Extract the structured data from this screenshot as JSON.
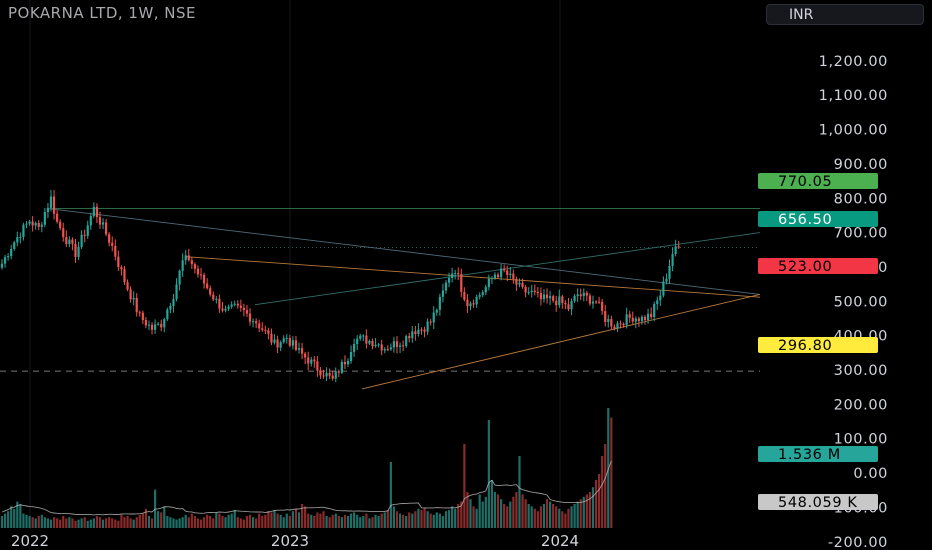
{
  "header": {
    "title": "POKARNA LTD, 1W, NSE",
    "currency": "INR"
  },
  "colors": {
    "up": "#26a69a",
    "down": "#ef5350",
    "bg": "#000000",
    "text": "#d1d4dc"
  },
  "chart_data": {
    "type": "candlestick",
    "price_axis": {
      "ticks": [
        "1,200.00",
        "1,100.00",
        "1,000.00",
        "900.00",
        "800.00",
        "700.00",
        "600.00",
        "500.00",
        "400.00",
        "300.00",
        "200.00",
        "100.00",
        "0.00",
        "-100.00",
        "-200.00"
      ]
    },
    "time_axis": {
      "labels": [
        "2022",
        "2023",
        "2024"
      ]
    },
    "price_labels": [
      {
        "label": "770.05",
        "color": "#4caf50",
        "text_color": "#000000"
      },
      {
        "label": "656.50",
        "color": "#089981",
        "text_color": "#ffffff"
      },
      {
        "label": "523.00",
        "color": "#f23645",
        "text_color": "#000000"
      },
      {
        "label": "296.80",
        "color": "#ffeb3b",
        "text_color": "#000000"
      },
      {
        "label": "1.536 M",
        "color": "#26a69a",
        "text_color": "#000000"
      },
      {
        "label": "548.059 K",
        "color": "#c8c8c8",
        "text_color": "#000000"
      }
    ],
    "series": [
      {
        "name": "price",
        "close_path": [
          [
            0,
            610
          ],
          [
            3,
            660
          ],
          [
            6,
            700
          ],
          [
            9,
            735
          ],
          [
            12,
            712
          ],
          [
            14,
            760
          ],
          [
            16,
            800
          ],
          [
            18,
            730
          ],
          [
            21,
            680
          ],
          [
            24,
            640
          ],
          [
            27,
            700
          ],
          [
            30,
            770
          ],
          [
            33,
            715
          ],
          [
            36,
            660
          ],
          [
            40,
            560
          ],
          [
            45,
            455
          ],
          [
            49,
            420
          ],
          [
            52,
            435
          ],
          [
            56,
            520
          ],
          [
            59,
            615
          ],
          [
            61,
            625
          ],
          [
            64,
            580
          ],
          [
            67,
            540
          ],
          [
            70,
            500
          ],
          [
            73,
            470
          ],
          [
            76,
            480
          ],
          [
            79,
            470
          ],
          [
            83,
            440
          ],
          [
            86,
            410
          ],
          [
            89,
            375
          ],
          [
            93,
            395
          ],
          [
            96,
            360
          ],
          [
            100,
            330
          ],
          [
            103,
            305
          ],
          [
            106,
            285
          ],
          [
            108,
            270
          ],
          [
            110,
            300
          ],
          [
            113,
            340
          ],
          [
            115,
            390
          ],
          [
            118,
            390
          ],
          [
            122,
            380
          ],
          [
            125,
            365
          ],
          [
            128,
            375
          ],
          [
            131,
            385
          ],
          [
            134,
            415
          ],
          [
            137,
            420
          ],
          [
            140,
            440
          ],
          [
            143,
            500
          ],
          [
            146,
            575
          ],
          [
            148,
            595
          ],
          [
            150,
            540
          ],
          [
            152,
            495
          ],
          [
            155,
            510
          ],
          [
            158,
            540
          ],
          [
            161,
            580
          ],
          [
            164,
            585
          ],
          [
            167,
            560
          ],
          [
            170,
            530
          ],
          [
            173,
            525
          ],
          [
            176,
            505
          ],
          [
            179,
            505
          ],
          [
            182,
            500
          ],
          [
            185,
            480
          ],
          [
            188,
            520
          ],
          [
            191,
            510
          ],
          [
            194,
            500
          ],
          [
            197,
            450
          ],
          [
            200,
            430
          ],
          [
            203,
            445
          ],
          [
            206,
            455
          ],
          [
            209,
            450
          ],
          [
            212,
            460
          ],
          [
            215,
            520
          ],
          [
            217,
            575
          ],
          [
            219,
            640
          ],
          [
            221,
            656.5
          ]
        ]
      },
      {
        "name": "volume",
        "values": [
          10,
          12,
          14,
          18,
          16,
          22,
          20,
          12,
          11,
          10,
          9,
          8,
          10,
          11,
          9,
          8,
          7,
          9,
          8,
          7,
          10,
          8,
          9,
          8,
          6,
          7,
          8,
          9,
          6,
          7,
          8,
          10,
          9,
          7,
          8,
          9,
          8,
          7,
          6,
          11,
          9,
          10,
          8,
          7,
          9,
          11,
          12,
          16,
          10,
          8,
          32,
          14,
          13,
          18,
          10,
          9,
          8,
          7,
          8,
          9,
          11,
          9,
          12,
          10,
          8,
          7,
          9,
          11,
          10,
          8,
          13,
          12,
          10,
          9,
          11,
          12,
          15,
          9,
          8,
          7,
          10,
          11,
          9,
          8,
          12,
          10,
          11,
          14,
          13,
          15,
          12,
          11,
          9,
          12,
          10,
          14,
          16,
          13,
          20,
          18,
          12,
          11,
          10,
          13,
          12,
          14,
          10,
          9,
          11,
          12,
          10,
          9,
          11,
          10,
          12,
          13,
          11,
          9,
          10,
          12,
          8,
          9,
          11,
          10,
          12,
          13,
          15,
          55,
          18,
          14,
          12,
          11,
          10,
          13,
          12,
          14,
          16,
          15,
          17,
          14,
          12,
          11,
          13,
          12,
          10,
          14,
          15,
          18,
          16,
          20,
          22,
          70,
          30,
          24,
          18,
          16,
          28,
          22,
          26,
          90,
          40,
          30,
          28,
          24,
          20,
          18,
          22,
          26,
          30,
          60,
          28,
          24,
          20,
          18,
          16,
          14,
          18,
          20,
          24,
          22,
          20,
          18,
          16,
          14,
          12,
          16,
          18,
          20,
          22,
          24,
          26,
          28,
          30,
          34,
          40,
          45,
          60,
          70,
          100,
          92
        ]
      }
    ]
  }
}
